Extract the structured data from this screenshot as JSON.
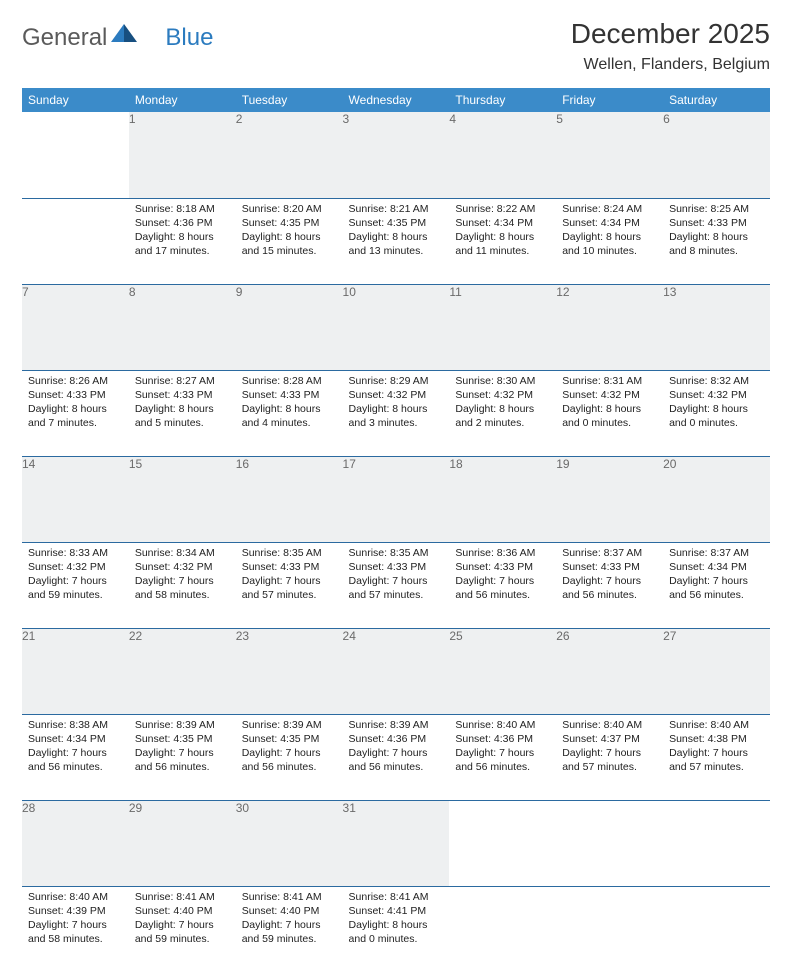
{
  "brand": {
    "word1": "General",
    "word2": "Blue"
  },
  "title": "December 2025",
  "location": "Wellen, Flanders, Belgium",
  "colors": {
    "header_bg": "#3b8bc9",
    "header_text": "#ffffff",
    "daynum_bg": "#eef0f1",
    "daynum_text": "#6a6a6a",
    "row_divider": "#2b6aa0",
    "logo_gray": "#5a5a5a",
    "logo_blue": "#2b7bbf"
  },
  "weekdays": [
    "Sunday",
    "Monday",
    "Tuesday",
    "Wednesday",
    "Thursday",
    "Friday",
    "Saturday"
  ],
  "weeks": [
    [
      {
        "day": "",
        "sunrise": "",
        "sunset": "",
        "daylight": ""
      },
      {
        "day": "1",
        "sunrise": "8:18 AM",
        "sunset": "4:36 PM",
        "daylight": "8 hours and 17 minutes."
      },
      {
        "day": "2",
        "sunrise": "8:20 AM",
        "sunset": "4:35 PM",
        "daylight": "8 hours and 15 minutes."
      },
      {
        "day": "3",
        "sunrise": "8:21 AM",
        "sunset": "4:35 PM",
        "daylight": "8 hours and 13 minutes."
      },
      {
        "day": "4",
        "sunrise": "8:22 AM",
        "sunset": "4:34 PM",
        "daylight": "8 hours and 11 minutes."
      },
      {
        "day": "5",
        "sunrise": "8:24 AM",
        "sunset": "4:34 PM",
        "daylight": "8 hours and 10 minutes."
      },
      {
        "day": "6",
        "sunrise": "8:25 AM",
        "sunset": "4:33 PM",
        "daylight": "8 hours and 8 minutes."
      }
    ],
    [
      {
        "day": "7",
        "sunrise": "8:26 AM",
        "sunset": "4:33 PM",
        "daylight": "8 hours and 7 minutes."
      },
      {
        "day": "8",
        "sunrise": "8:27 AM",
        "sunset": "4:33 PM",
        "daylight": "8 hours and 5 minutes."
      },
      {
        "day": "9",
        "sunrise": "8:28 AM",
        "sunset": "4:33 PM",
        "daylight": "8 hours and 4 minutes."
      },
      {
        "day": "10",
        "sunrise": "8:29 AM",
        "sunset": "4:32 PM",
        "daylight": "8 hours and 3 minutes."
      },
      {
        "day": "11",
        "sunrise": "8:30 AM",
        "sunset": "4:32 PM",
        "daylight": "8 hours and 2 minutes."
      },
      {
        "day": "12",
        "sunrise": "8:31 AM",
        "sunset": "4:32 PM",
        "daylight": "8 hours and 0 minutes."
      },
      {
        "day": "13",
        "sunrise": "8:32 AM",
        "sunset": "4:32 PM",
        "daylight": "8 hours and 0 minutes."
      }
    ],
    [
      {
        "day": "14",
        "sunrise": "8:33 AM",
        "sunset": "4:32 PM",
        "daylight": "7 hours and 59 minutes."
      },
      {
        "day": "15",
        "sunrise": "8:34 AM",
        "sunset": "4:32 PM",
        "daylight": "7 hours and 58 minutes."
      },
      {
        "day": "16",
        "sunrise": "8:35 AM",
        "sunset": "4:33 PM",
        "daylight": "7 hours and 57 minutes."
      },
      {
        "day": "17",
        "sunrise": "8:35 AM",
        "sunset": "4:33 PM",
        "daylight": "7 hours and 57 minutes."
      },
      {
        "day": "18",
        "sunrise": "8:36 AM",
        "sunset": "4:33 PM",
        "daylight": "7 hours and 56 minutes."
      },
      {
        "day": "19",
        "sunrise": "8:37 AM",
        "sunset": "4:33 PM",
        "daylight": "7 hours and 56 minutes."
      },
      {
        "day": "20",
        "sunrise": "8:37 AM",
        "sunset": "4:34 PM",
        "daylight": "7 hours and 56 minutes."
      }
    ],
    [
      {
        "day": "21",
        "sunrise": "8:38 AM",
        "sunset": "4:34 PM",
        "daylight": "7 hours and 56 minutes."
      },
      {
        "day": "22",
        "sunrise": "8:39 AM",
        "sunset": "4:35 PM",
        "daylight": "7 hours and 56 minutes."
      },
      {
        "day": "23",
        "sunrise": "8:39 AM",
        "sunset": "4:35 PM",
        "daylight": "7 hours and 56 minutes."
      },
      {
        "day": "24",
        "sunrise": "8:39 AM",
        "sunset": "4:36 PM",
        "daylight": "7 hours and 56 minutes."
      },
      {
        "day": "25",
        "sunrise": "8:40 AM",
        "sunset": "4:36 PM",
        "daylight": "7 hours and 56 minutes."
      },
      {
        "day": "26",
        "sunrise": "8:40 AM",
        "sunset": "4:37 PM",
        "daylight": "7 hours and 57 minutes."
      },
      {
        "day": "27",
        "sunrise": "8:40 AM",
        "sunset": "4:38 PM",
        "daylight": "7 hours and 57 minutes."
      }
    ],
    [
      {
        "day": "28",
        "sunrise": "8:40 AM",
        "sunset": "4:39 PM",
        "daylight": "7 hours and 58 minutes."
      },
      {
        "day": "29",
        "sunrise": "8:41 AM",
        "sunset": "4:40 PM",
        "daylight": "7 hours and 59 minutes."
      },
      {
        "day": "30",
        "sunrise": "8:41 AM",
        "sunset": "4:40 PM",
        "daylight": "7 hours and 59 minutes."
      },
      {
        "day": "31",
        "sunrise": "8:41 AM",
        "sunset": "4:41 PM",
        "daylight": "8 hours and 0 minutes."
      },
      {
        "day": "",
        "sunrise": "",
        "sunset": "",
        "daylight": ""
      },
      {
        "day": "",
        "sunrise": "",
        "sunset": "",
        "daylight": ""
      },
      {
        "day": "",
        "sunrise": "",
        "sunset": "",
        "daylight": ""
      }
    ]
  ],
  "labels": {
    "sunrise": "Sunrise:",
    "sunset": "Sunset:",
    "daylight": "Daylight:"
  }
}
